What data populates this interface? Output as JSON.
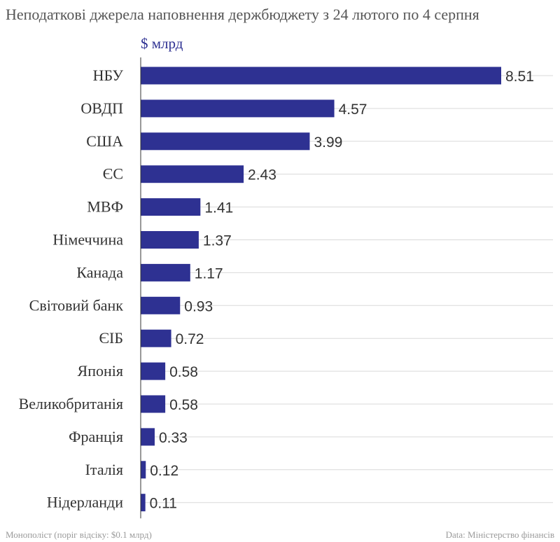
{
  "chart_data": {
    "type": "bar",
    "orientation": "horizontal",
    "title": "Неподаткові джерела наповнення держбюджету з 24 лютого по 4 серпня",
    "unit_label": "$ млрд",
    "categories": [
      "НБУ",
      "ОВДП",
      "США",
      "ЄС",
      "МВФ",
      "Німеччина",
      "Канада",
      "Світовий банк",
      "ЄІБ",
      "Японія",
      "Великобританія",
      "Франція",
      "Італія",
      "Нідерланди"
    ],
    "values": [
      8.51,
      4.57,
      3.99,
      2.43,
      1.41,
      1.37,
      1.17,
      0.93,
      0.72,
      0.58,
      0.58,
      0.33,
      0.12,
      0.11
    ],
    "value_labels": [
      "8.51",
      "4.57",
      "3.99",
      "2.43",
      "1.41",
      "1.37",
      "1.17",
      "0.93",
      "0.72",
      "0.58",
      "0.58",
      "0.33",
      "0.12",
      "0.11"
    ],
    "xlim": [
      0,
      8.51
    ],
    "grid": true,
    "bar_color": "#2e3192"
  },
  "footer": {
    "left": "Монополіст (поріг відсіку: $0.1 млрд)",
    "right": "Data: Міністерство фінансів"
  }
}
